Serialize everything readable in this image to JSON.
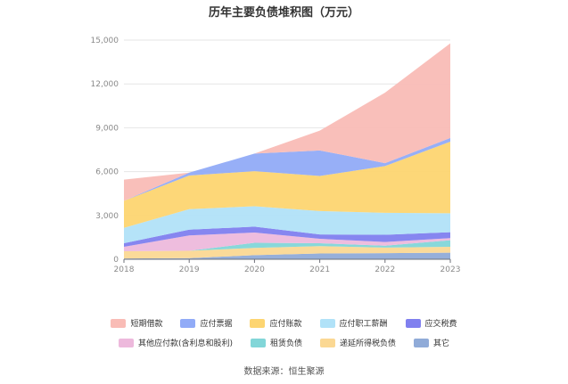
{
  "chart_data": {
    "type": "area",
    "stacked": true,
    "title": "历年主要负债堆积图（万元）",
    "xlabel": "",
    "ylabel": "",
    "x": [
      "2018",
      "2019",
      "2020",
      "2021",
      "2022",
      "2023"
    ],
    "ylim": [
      0,
      15000
    ],
    "yticks": [
      0,
      3000,
      6000,
      9000,
      12000,
      15000
    ],
    "ytick_labels": [
      "0",
      "3,000",
      "6,000",
      "9,000",
      "12,000",
      "15,000"
    ],
    "grid": true,
    "legend_position": "bottom",
    "series": [
      {
        "name": "其它",
        "color": "#90abd8",
        "values": [
          50,
          80,
          280,
          400,
          420,
          450
        ]
      },
      {
        "name": "递延所得税负债",
        "color": "#fbd893",
        "values": [
          500,
          500,
          500,
          500,
          380,
          400
        ]
      },
      {
        "name": "租赁负债",
        "color": "#82d6d8",
        "values": [
          0,
          0,
          350,
          200,
          130,
          450
        ]
      },
      {
        "name": "其他应付款(含利息和股利)",
        "color": "#edb9dc",
        "values": [
          300,
          1050,
          700,
          300,
          250,
          150
        ]
      },
      {
        "name": "应交税费",
        "color": "#8080ef",
        "values": [
          250,
          400,
          400,
          300,
          500,
          400
        ]
      },
      {
        "name": "应付职工薪酬",
        "color": "#b1e2f8",
        "values": [
          1050,
          1400,
          1400,
          1600,
          1500,
          1300
        ]
      },
      {
        "name": "应付账款",
        "color": "#fdd571",
        "values": [
          1850,
          2300,
          2400,
          2400,
          3200,
          4900
        ]
      },
      {
        "name": "应付票据",
        "color": "#91abf7",
        "values": [
          0,
          200,
          1200,
          1750,
          200,
          250
        ]
      },
      {
        "name": "短期借款",
        "color": "#f9bcb6",
        "values": [
          1450,
          0,
          0,
          1350,
          4820,
          6480
        ]
      }
    ]
  },
  "legend": {
    "row1": [
      "短期借款",
      "应付票据",
      "应付账款",
      "应付职工薪酬",
      "应交税费"
    ],
    "row2": [
      "其他应付款(含利息和股利)",
      "租赁负债",
      "递延所得税负债",
      "其它"
    ]
  },
  "source": "数据来源：恒生聚源"
}
